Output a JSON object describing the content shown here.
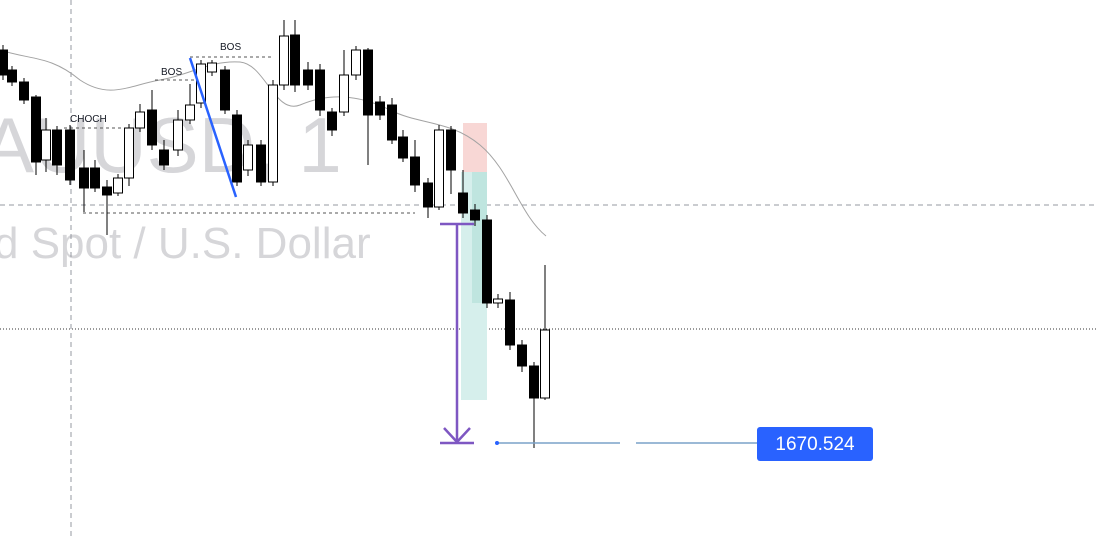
{
  "watermark": {
    "symbol": "AUUSD, 1",
    "description": "d Spot / U.S. Dollar"
  },
  "annotations": {
    "choch": "CHOCH",
    "bos_1": "BOS",
    "bos_2": "BOS"
  },
  "price_label": "1670.524"
}
